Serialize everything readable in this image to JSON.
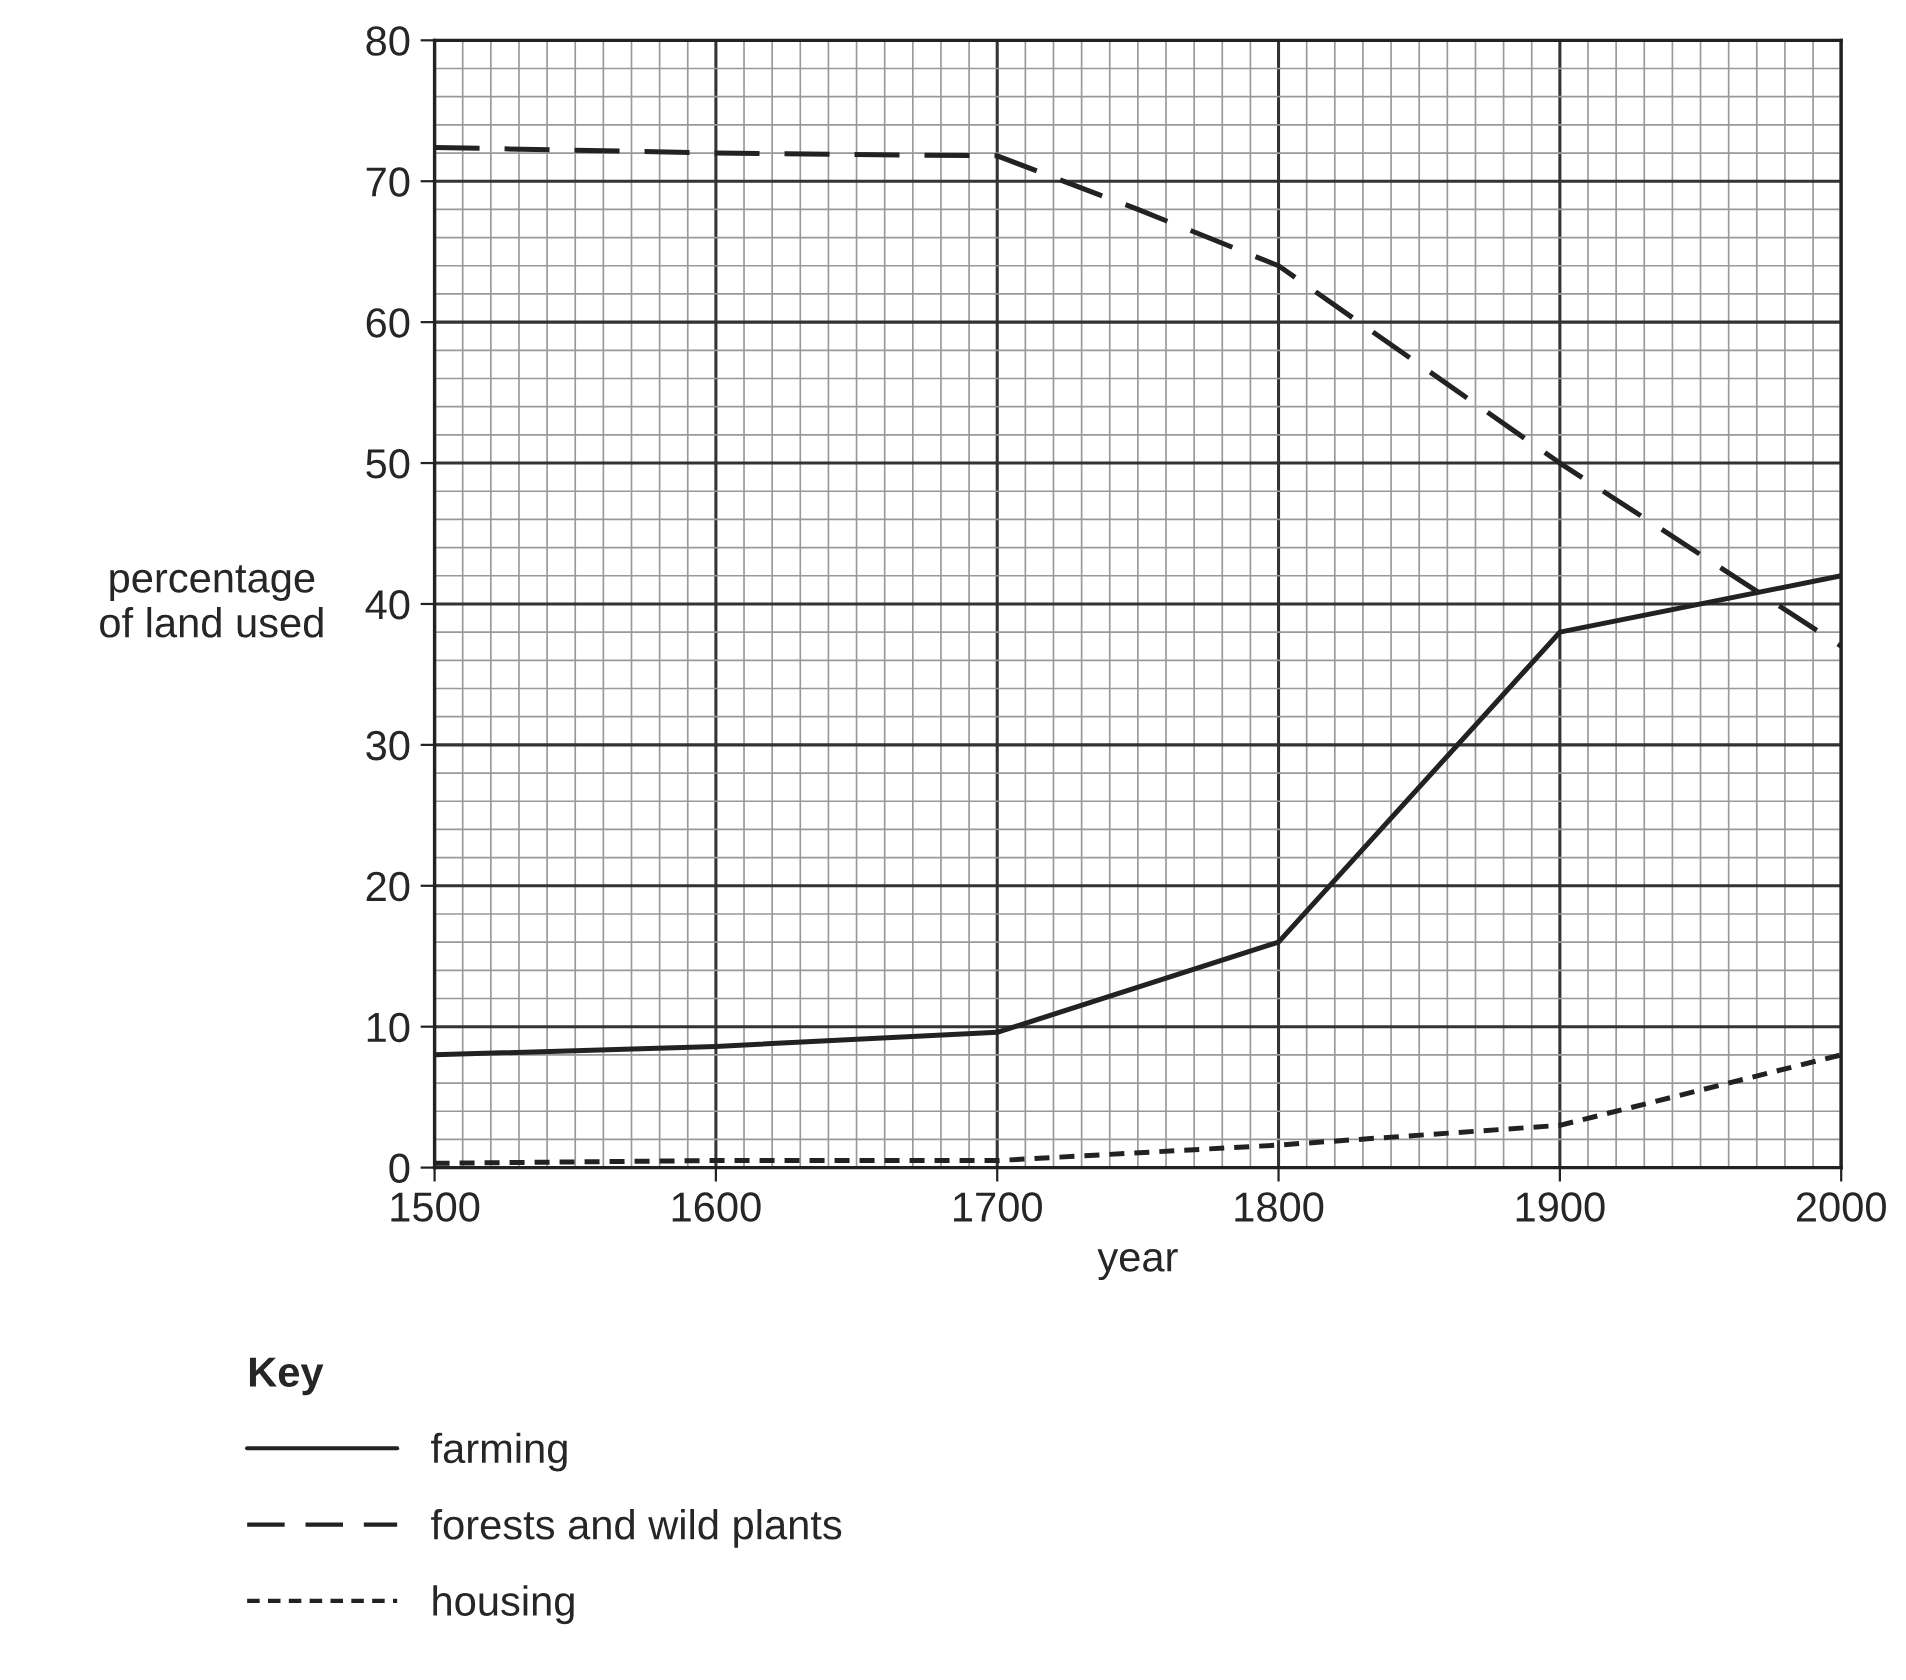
{
  "chart_data": {
    "type": "line",
    "xlabel": "year",
    "ylabel": "percentage\nof land used",
    "legend_title": "Key",
    "x": [
      1500,
      1600,
      1700,
      1750,
      1800,
      1850,
      1900,
      1950,
      2000
    ],
    "series": [
      {
        "name": "farming",
        "color": "#222222",
        "line_style": "solid",
        "values": [
          8,
          8.6,
          9.6,
          null,
          16,
          null,
          38,
          null,
          42
        ]
      },
      {
        "name": "forests and wild plants",
        "color": "#222222",
        "line_style": "dashed",
        "values": [
          72.4,
          72,
          71.8,
          68,
          64,
          57,
          50,
          43.5,
          37
        ]
      },
      {
        "name": "housing",
        "color": "#222222",
        "line_style": "dotted",
        "values": [
          0.3,
          0.5,
          0.5,
          null,
          1.6,
          null,
          3,
          null,
          8
        ]
      }
    ],
    "xlim": [
      1500,
      2000
    ],
    "xticks": [
      1500,
      1600,
      1700,
      1800,
      1900,
      2000
    ],
    "ylim": [
      0,
      80
    ],
    "yticks": [
      0,
      10,
      20,
      30,
      40,
      50,
      60,
      70,
      80
    ],
    "grid": true,
    "legend": "bottom left",
    "marker": "none"
  }
}
